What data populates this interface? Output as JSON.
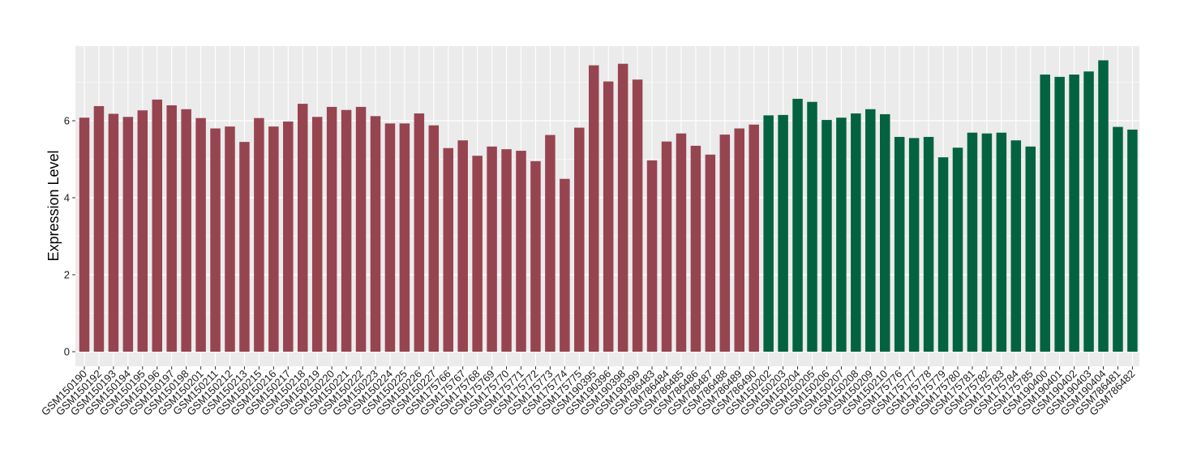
{
  "chart_data": {
    "type": "bar",
    "title": "",
    "xlabel": "",
    "ylabel": "Expression Level",
    "ylim": [
      0,
      7.85
    ],
    "yticks": [
      0,
      2,
      4,
      6
    ],
    "grid": true,
    "legend": "none",
    "colors": {
      "group1": "#974451",
      "group2": "#036341",
      "panel": "#ebebeb",
      "gridline": "#ffffff"
    },
    "categories": [
      "GSM150190",
      "GSM150192",
      "GSM150193",
      "GSM150194",
      "GSM150195",
      "GSM150196",
      "GSM150197",
      "GSM150198",
      "GSM150201",
      "GSM150211",
      "GSM150212",
      "GSM150213",
      "GSM150215",
      "GSM150216",
      "GSM150217",
      "GSM150218",
      "GSM150219",
      "GSM150220",
      "GSM150221",
      "GSM150222",
      "GSM150223",
      "GSM150224",
      "GSM150225",
      "GSM150226",
      "GSM150227",
      "GSM175766",
      "GSM175767",
      "GSM175768",
      "GSM175769",
      "GSM175770",
      "GSM175771",
      "GSM175772",
      "GSM175773",
      "GSM175774",
      "GSM175775",
      "GSM190395",
      "GSM190396",
      "GSM190398",
      "GSM190399",
      "GSM786483",
      "GSM786484",
      "GSM786485",
      "GSM786486",
      "GSM786487",
      "GSM786488",
      "GSM786489",
      "GSM786490",
      "GSM150202",
      "GSM150203",
      "GSM150204",
      "GSM150205",
      "GSM150206",
      "GSM150207",
      "GSM150208",
      "GSM150209",
      "GSM150210",
      "GSM175776",
      "GSM175777",
      "GSM175778",
      "GSM175779",
      "GSM175780",
      "GSM175781",
      "GSM175782",
      "GSM175783",
      "GSM175784",
      "GSM175785",
      "GSM190400",
      "GSM190401",
      "GSM190402",
      "GSM190403",
      "GSM190404",
      "GSM786481",
      "GSM786482"
    ],
    "values": [
      6.08,
      6.38,
      6.18,
      6.1,
      6.27,
      6.55,
      6.4,
      6.3,
      6.07,
      5.8,
      5.85,
      5.45,
      6.07,
      5.85,
      5.98,
      6.44,
      6.1,
      6.36,
      6.28,
      6.36,
      6.12,
      5.93,
      5.93,
      6.19,
      5.88,
      5.29,
      5.49,
      5.09,
      5.33,
      5.26,
      5.22,
      4.95,
      5.63,
      4.49,
      5.82,
      7.44,
      7.02,
      7.48,
      7.07,
      4.97,
      5.46,
      5.67,
      5.35,
      5.12,
      5.64,
      5.8,
      5.9,
      6.14,
      6.15,
      6.57,
      6.49,
      6.02,
      6.08,
      6.19,
      6.3,
      6.17,
      5.58,
      5.55,
      5.58,
      5.05,
      5.3,
      5.69,
      5.67,
      5.69,
      5.49,
      5.33,
      7.2,
      7.14,
      7.2,
      7.28,
      7.57,
      5.84,
      5.77
    ],
    "groups": [
      1,
      1,
      1,
      1,
      1,
      1,
      1,
      1,
      1,
      1,
      1,
      1,
      1,
      1,
      1,
      1,
      1,
      1,
      1,
      1,
      1,
      1,
      1,
      1,
      1,
      1,
      1,
      1,
      1,
      1,
      1,
      1,
      1,
      1,
      1,
      1,
      1,
      1,
      1,
      1,
      1,
      1,
      1,
      1,
      1,
      1,
      1,
      2,
      2,
      2,
      2,
      2,
      2,
      2,
      2,
      2,
      2,
      2,
      2,
      2,
      2,
      2,
      2,
      2,
      2,
      2,
      2,
      2,
      2,
      2,
      2,
      2,
      2
    ]
  }
}
